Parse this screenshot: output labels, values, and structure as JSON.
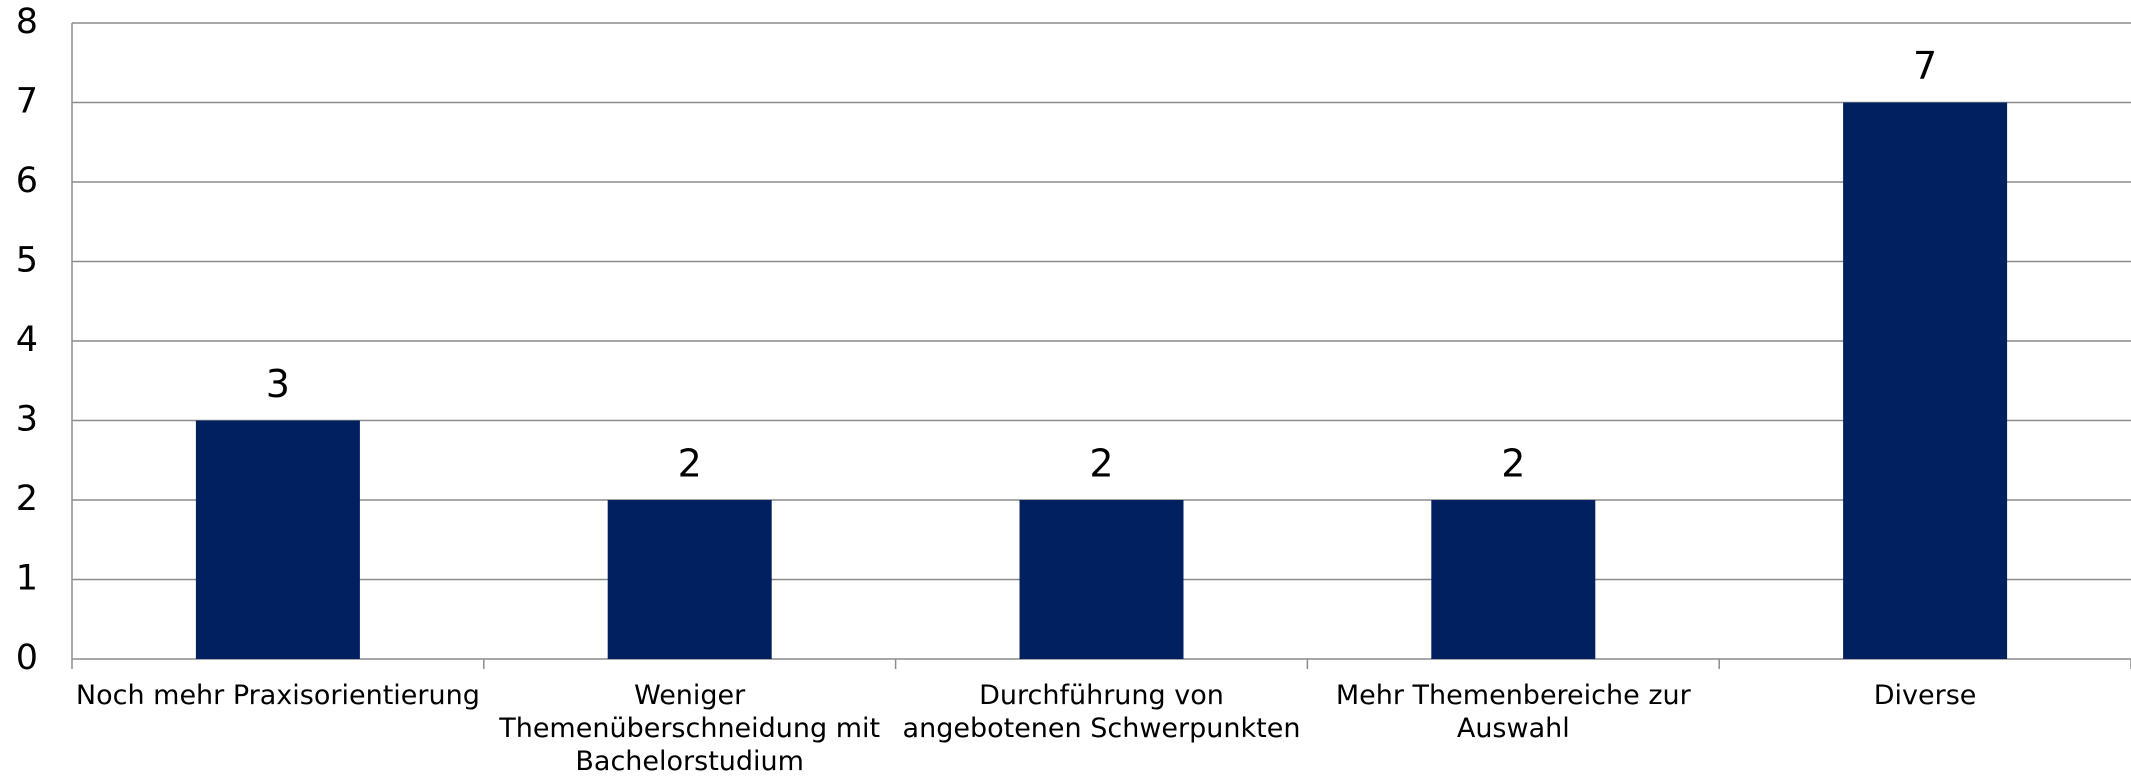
{
  "chart_data": {
    "type": "bar",
    "categories": [
      "Noch mehr Praxisorientierung",
      "Weniger Themenüberschneidung mit Bachelorstudium",
      "Durchführung von angebotenen Schwerpunkten",
      "Mehr Themenbereiche zur Auswahl",
      "Diverse"
    ],
    "values": [
      3,
      2,
      2,
      2,
      7
    ],
    "color": "#002060",
    "ylim": [
      0,
      8
    ],
    "yticks": [
      0,
      1,
      2,
      3,
      4,
      5,
      6,
      7,
      8
    ],
    "grid": true
  }
}
